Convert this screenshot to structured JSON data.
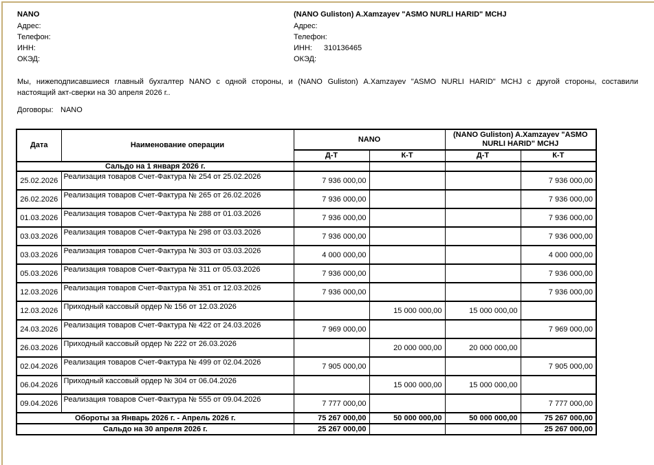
{
  "frame": {
    "edge_color": "#C6AE77",
    "page_background": "#ffffff"
  },
  "header": {
    "left_company": {
      "name": "NANO",
      "fields": [
        {
          "label": "Адрес:",
          "value": ""
        },
        {
          "label": "Телефон:",
          "value": ""
        },
        {
          "label": "ИНН:",
          "value": ""
        },
        {
          "label": "ОКЭД:",
          "value": ""
        }
      ]
    },
    "right_company": {
      "name": "(NANO Guliston) A.Xamzayev  \"ASMO NURLI HARID\" MCHJ",
      "fields": [
        {
          "label": "Адрес:",
          "value": ""
        },
        {
          "label": "Телефон:",
          "value": ""
        },
        {
          "label": "ИНН:",
          "value": "310136465"
        },
        {
          "label": "ОКЭД:",
          "value": ""
        }
      ]
    }
  },
  "intro": {
    "line1": "Мы, нижеподписавшиеся главный бухгалтер NANO с одной стороны, и (NANO Guliston) A.Xamzayev \"ASMO NURLI HARID\" MCHJ с другой стороны, составили",
    "line2": "настоящий акт-сверки на 30 апреля 2026 г.."
  },
  "contracts": {
    "label": "Договоры:",
    "value": "NANO"
  },
  "table": {
    "columns": {
      "date": "Дата",
      "operation": "Наименование операции",
      "dt": "Д-Т",
      "kt": "К-Т"
    },
    "group_headers": {
      "left": "NANO",
      "right": "(NANO Guliston) A.Xamzayev \"ASMO NURLI HARID\" MCHJ"
    },
    "opening_balance": {
      "label": "Сальдо на 1 января 2026 г.",
      "values": [
        "",
        "",
        "",
        ""
      ]
    },
    "rows": [
      {
        "date": "25.02.2026",
        "operation": "Реализация товаров Счет-Фактура № 254 от 25.02.2026",
        "values": [
          "7 936 000,00",
          "",
          "",
          "7 936 000,00"
        ]
      },
      {
        "date": "26.02.2026",
        "operation": "Реализация товаров Счет-Фактура № 265 от 26.02.2026",
        "values": [
          "7 936 000,00",
          "",
          "",
          "7 936 000,00"
        ]
      },
      {
        "date": "01.03.2026",
        "operation": "Реализация товаров Счет-Фактура № 288 от 01.03.2026",
        "values": [
          "7 936 000,00",
          "",
          "",
          "7 936 000,00"
        ]
      },
      {
        "date": "03.03.2026",
        "operation": "Реализация товаров Счет-Фактура № 298 от 03.03.2026",
        "values": [
          "7 936 000,00",
          "",
          "",
          "7 936 000,00"
        ]
      },
      {
        "date": "03.03.2026",
        "operation": "Реализация товаров Счет-Фактура № 303 от 03.03.2026",
        "values": [
          "4 000 000,00",
          "",
          "",
          "4 000 000,00"
        ]
      },
      {
        "date": "05.03.2026",
        "operation": "Реализация товаров Счет-Фактура № 311 от 05.03.2026",
        "values": [
          "7 936 000,00",
          "",
          "",
          "7 936 000,00"
        ]
      },
      {
        "date": "12.03.2026",
        "operation": "Реализация товаров Счет-Фактура № 351 от 12.03.2026",
        "values": [
          "7 936 000,00",
          "",
          "",
          "7 936 000,00"
        ]
      },
      {
        "date": "12.03.2026",
        "operation": "Приходный кассовый ордер № 156 от 12.03.2026",
        "values": [
          "",
          "15 000 000,00",
          "15 000 000,00",
          ""
        ]
      },
      {
        "date": "24.03.2026",
        "operation": "Реализация товаров Счет-Фактура № 422 от 24.03.2026",
        "values": [
          "7 969 000,00",
          "",
          "",
          "7 969 000,00"
        ]
      },
      {
        "date": "26.03.2026",
        "operation": "Приходный кассовый ордер № 222 от 26.03.2026",
        "values": [
          "",
          "20 000 000,00",
          "20 000 000,00",
          ""
        ]
      },
      {
        "date": "02.04.2026",
        "operation": "Реализация товаров Счет-Фактура № 499 от 02.04.2026",
        "values": [
          "7 905 000,00",
          "",
          "",
          "7 905 000,00"
        ]
      },
      {
        "date": "06.04.2026",
        "operation": "Приходный кассовый ордер № 304 от 06.04.2026",
        "values": [
          "",
          "15 000 000,00",
          "15 000 000,00",
          ""
        ]
      },
      {
        "date": "09.04.2026",
        "operation": "Реализация товаров Счет-Фактура № 555 от 09.04.2026",
        "values": [
          "7 777 000,00",
          "",
          "",
          "7 777 000,00"
        ]
      }
    ],
    "turnovers": {
      "label": "Обороты за Январь 2026 г. - Апрель 2026 г.",
      "values": [
        "75 267 000,00",
        "50 000 000,00",
        "50 000 000,00",
        "75 267 000,00"
      ]
    },
    "closing_balance": {
      "label": "Сальдо на 30 апреля 2026 г.",
      "values": [
        "25 267 000,00",
        "",
        "",
        "25 267 000,00"
      ]
    }
  }
}
